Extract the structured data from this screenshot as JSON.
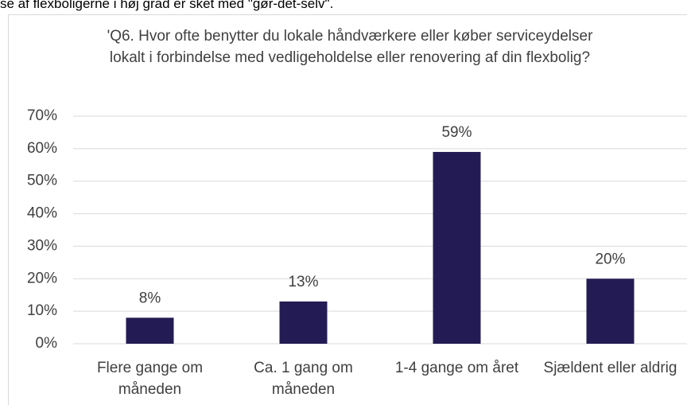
{
  "header_text": "se af flexboligerne i høj grad er sket med \"gør-det-selv\".",
  "chart_data": {
    "type": "bar",
    "title": "'Q6. Hvor ofte benytter du lokale håndværkere eller køber serviceydelser lokalt i forbindelse med vedligeholdelse eller renovering af din flexbolig?",
    "categories": [
      "Flere gange om måneden",
      "Ca. 1 gang om måneden",
      "1-4 gange om året",
      "Sjældent eller aldrig"
    ],
    "values": [
      8,
      13,
      59,
      20
    ],
    "value_labels": [
      "8%",
      "13%",
      "59%",
      "20%"
    ],
    "color": "#231c54",
    "ylim": [
      0,
      70
    ],
    "yticks": [
      {
        "value": 0,
        "label": "0%"
      },
      {
        "value": 10,
        "label": "10%"
      },
      {
        "value": 20,
        "label": "20%"
      },
      {
        "value": 30,
        "label": "30%"
      },
      {
        "value": 40,
        "label": "40%"
      },
      {
        "value": 50,
        "label": "50%"
      },
      {
        "value": 60,
        "label": "60%"
      },
      {
        "value": 70,
        "label": "70%"
      }
    ],
    "grid": true
  }
}
